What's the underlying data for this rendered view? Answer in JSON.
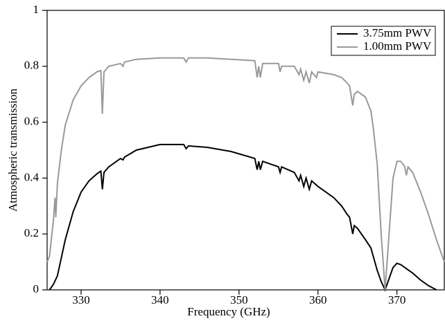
{
  "chart_data": {
    "type": "line",
    "xlabel": "Frequency (GHz)",
    "ylabel": "Atmospheric transmission",
    "xlim": [
      325.7,
      376
    ],
    "xticks": [
      330,
      340,
      350,
      360,
      370
    ],
    "ylim": [
      0,
      1
    ],
    "yticks": [
      0,
      0.2,
      0.4,
      0.6,
      0.8,
      1
    ],
    "legend": "upper right",
    "series": [
      {
        "name": "3.75mm PWV",
        "color": "#000000",
        "x": [
          326,
          326.5,
          327,
          328,
          329,
          330,
          331,
          332,
          332.5,
          332.7,
          332.9,
          333.5,
          335,
          335.3,
          335.5,
          337,
          340,
          343,
          343.3,
          343.6,
          346,
          349,
          352,
          352.3,
          352.5,
          352.7,
          353,
          355,
          355.2,
          355.4,
          357,
          357.6,
          357.8,
          358.2,
          358.5,
          358.9,
          359.2,
          360,
          362,
          363,
          363.7,
          364,
          364.4,
          364.6,
          365,
          366,
          366.7,
          367,
          367.5,
          368,
          368.5,
          369,
          369.5,
          370,
          370.5,
          371,
          372,
          373,
          374,
          375
        ],
        "values": [
          0.0,
          0.02,
          0.05,
          0.18,
          0.28,
          0.35,
          0.39,
          0.415,
          0.425,
          0.36,
          0.42,
          0.44,
          0.47,
          0.465,
          0.475,
          0.5,
          0.52,
          0.52,
          0.505,
          0.515,
          0.51,
          0.495,
          0.47,
          0.43,
          0.46,
          0.43,
          0.46,
          0.44,
          0.42,
          0.44,
          0.42,
          0.39,
          0.41,
          0.37,
          0.4,
          0.36,
          0.39,
          0.37,
          0.33,
          0.3,
          0.27,
          0.26,
          0.2,
          0.23,
          0.22,
          0.18,
          0.15,
          0.12,
          0.07,
          0.03,
          0.0,
          0.04,
          0.08,
          0.095,
          0.09,
          0.08,
          0.06,
          0.035,
          0.015,
          0.0
        ]
      },
      {
        "name": "1.00mm PWV",
        "color": "#999999",
        "x": [
          325.7,
          326,
          326.5,
          326.7,
          326.8,
          327,
          327.5,
          328,
          329,
          330,
          331,
          332,
          332.5,
          332.7,
          332.9,
          333.5,
          335,
          335.3,
          335.5,
          337,
          340,
          343,
          343.3,
          343.6,
          346,
          349,
          352,
          352.3,
          352.5,
          352.7,
          353,
          355,
          355.2,
          355.4,
          357,
          357.6,
          357.8,
          358.2,
          358.5,
          358.9,
          359.2,
          359.8,
          360,
          362,
          363,
          363.7,
          364,
          364.4,
          364.6,
          365,
          366,
          366.7,
          367,
          367.5,
          368,
          368.5,
          369,
          369.5,
          370,
          370.5,
          371,
          371.2,
          371.4,
          372,
          373,
          374,
          375,
          376
        ],
        "values": [
          0.1,
          0.12,
          0.25,
          0.33,
          0.26,
          0.38,
          0.5,
          0.59,
          0.68,
          0.73,
          0.76,
          0.78,
          0.785,
          0.63,
          0.78,
          0.8,
          0.81,
          0.8,
          0.815,
          0.825,
          0.83,
          0.83,
          0.815,
          0.83,
          0.83,
          0.825,
          0.82,
          0.76,
          0.8,
          0.76,
          0.81,
          0.81,
          0.78,
          0.8,
          0.8,
          0.77,
          0.79,
          0.75,
          0.78,
          0.74,
          0.78,
          0.76,
          0.78,
          0.77,
          0.76,
          0.74,
          0.73,
          0.66,
          0.7,
          0.71,
          0.69,
          0.64,
          0.58,
          0.45,
          0.2,
          0.0,
          0.2,
          0.4,
          0.46,
          0.46,
          0.44,
          0.41,
          0.44,
          0.42,
          0.35,
          0.27,
          0.18,
          0.1
        ]
      }
    ]
  }
}
